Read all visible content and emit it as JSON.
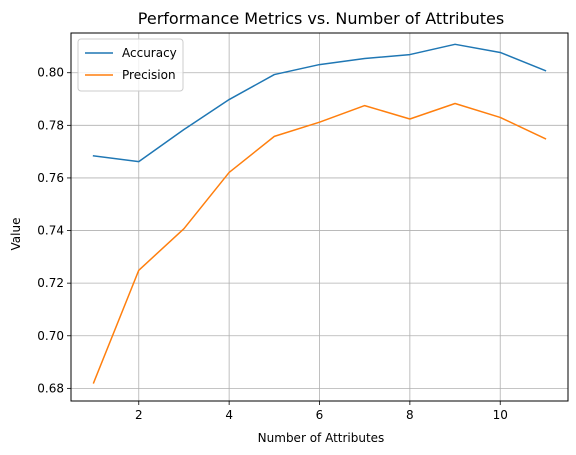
{
  "chart_data": {
    "type": "line",
    "title": "Performance Metrics vs. Number of Attributes",
    "xlabel": "Number of Attributes",
    "ylabel": "Value",
    "x": [
      1,
      2,
      3,
      4,
      5,
      6,
      7,
      8,
      9,
      10,
      11
    ],
    "xlim": [
      0.5,
      11.5
    ],
    "ylim": [
      0.6752,
      0.8151
    ],
    "xticks": [
      2,
      4,
      6,
      8,
      10
    ],
    "xtick_labels": [
      "2",
      "4",
      "6",
      "8",
      "10"
    ],
    "yticks": [
      0.68,
      0.7,
      0.72,
      0.74,
      0.76,
      0.78,
      0.8
    ],
    "ytick_labels": [
      "0.68",
      "0.70",
      "0.72",
      "0.74",
      "0.76",
      "0.78",
      "0.80"
    ],
    "grid": true,
    "legend_position": "upper-left",
    "series": [
      {
        "name": "Accuracy",
        "color": "#1f77b4",
        "values": [
          0.7684,
          0.7662,
          0.7784,
          0.7898,
          0.7993,
          0.8031,
          0.8054,
          0.8069,
          0.8108,
          0.8077,
          0.8008
        ]
      },
      {
        "name": "Precision",
        "color": "#ff7f0e",
        "values": [
          0.6821,
          0.7249,
          0.7407,
          0.7621,
          0.7758,
          0.7812,
          0.7875,
          0.7824,
          0.7883,
          0.783,
          0.7749
        ]
      }
    ]
  }
}
